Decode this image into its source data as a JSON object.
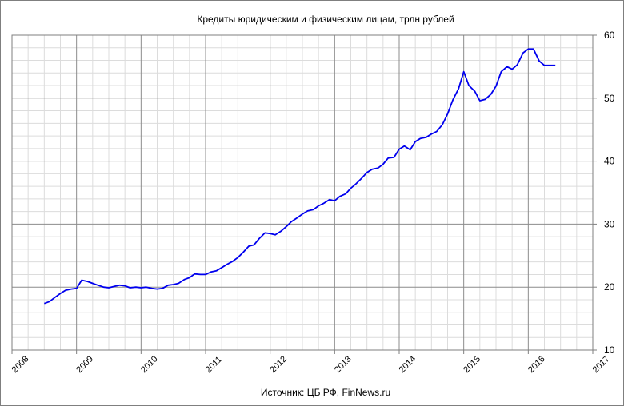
{
  "chart_data": {
    "type": "line",
    "title": "Кредиты юридическим и физическим лицам, трлн рублей",
    "source": "Источник: ЦБ РФ, FinNews.ru",
    "xlabel": "",
    "ylabel": "",
    "xlim": [
      2008,
      2017
    ],
    "ylim": [
      10,
      60
    ],
    "x_ticks": [
      "2008",
      "2009",
      "2010",
      "2011",
      "2012",
      "2013",
      "2014",
      "2015",
      "2016",
      "2017"
    ],
    "y_ticks": [
      "10",
      "20",
      "30",
      "40",
      "50",
      "60"
    ],
    "y_axis_side": "right",
    "grid": true,
    "legend": "none",
    "line_color": "#0000ee",
    "series": [
      {
        "x": [
          2008.5,
          2008.58,
          2008.67,
          2008.75,
          2008.83,
          2008.92,
          2009.0,
          2009.08,
          2009.17,
          2009.25,
          2009.33,
          2009.42,
          2009.5,
          2009.58,
          2009.67,
          2009.75,
          2009.83,
          2009.92,
          2010.0,
          2010.08,
          2010.17,
          2010.25,
          2010.33,
          2010.42,
          2010.5,
          2010.58,
          2010.67,
          2010.75,
          2010.83,
          2010.92,
          2011.0,
          2011.08,
          2011.17,
          2011.25,
          2011.33,
          2011.42,
          2011.5,
          2011.58,
          2011.67,
          2011.75,
          2011.83,
          2011.92,
          2012.0,
          2012.08,
          2012.17,
          2012.25,
          2012.33,
          2012.42,
          2012.5,
          2012.58,
          2012.67,
          2012.75,
          2012.83,
          2012.92,
          2013.0,
          2013.08,
          2013.17,
          2013.25,
          2013.33,
          2013.42,
          2013.5,
          2013.58,
          2013.67,
          2013.75,
          2013.83,
          2013.92,
          2014.0,
          2014.08,
          2014.17,
          2014.25,
          2014.33,
          2014.42,
          2014.5,
          2014.58,
          2014.67,
          2014.75,
          2014.83,
          2014.92,
          2015.0,
          2015.08,
          2015.17,
          2015.25,
          2015.33,
          2015.42,
          2015.5,
          2015.58,
          2015.67,
          2015.75,
          2015.83,
          2015.92,
          2016.0,
          2016.08,
          2016.17,
          2016.25,
          2016.33,
          2016.42
        ],
        "values": [
          17.4,
          17.7,
          18.4,
          19.0,
          19.5,
          19.7,
          19.8,
          21.1,
          20.9,
          20.6,
          20.3,
          20.0,
          19.9,
          20.1,
          20.3,
          20.2,
          19.9,
          20.0,
          19.9,
          20.0,
          19.8,
          19.7,
          19.8,
          20.3,
          20.4,
          20.6,
          21.2,
          21.5,
          22.1,
          22.0,
          22.0,
          22.4,
          22.6,
          23.1,
          23.6,
          24.1,
          24.7,
          25.5,
          26.5,
          26.7,
          27.7,
          28.6,
          28.5,
          28.3,
          28.9,
          29.6,
          30.4,
          31.0,
          31.6,
          32.1,
          32.3,
          32.9,
          33.3,
          33.9,
          33.7,
          34.4,
          34.8,
          35.7,
          36.4,
          37.3,
          38.2,
          38.7,
          38.9,
          39.5,
          40.5,
          40.6,
          41.9,
          42.4,
          41.8,
          43.1,
          43.6,
          43.8,
          44.3,
          44.7,
          45.8,
          47.5,
          49.7,
          51.5,
          54.2,
          52.0,
          51.1,
          49.6,
          49.8,
          50.6,
          51.9,
          54.2,
          55.0,
          54.6,
          55.3,
          57.2,
          57.8,
          57.8,
          55.9,
          55.2,
          55.2,
          55.2
        ]
      }
    ]
  }
}
